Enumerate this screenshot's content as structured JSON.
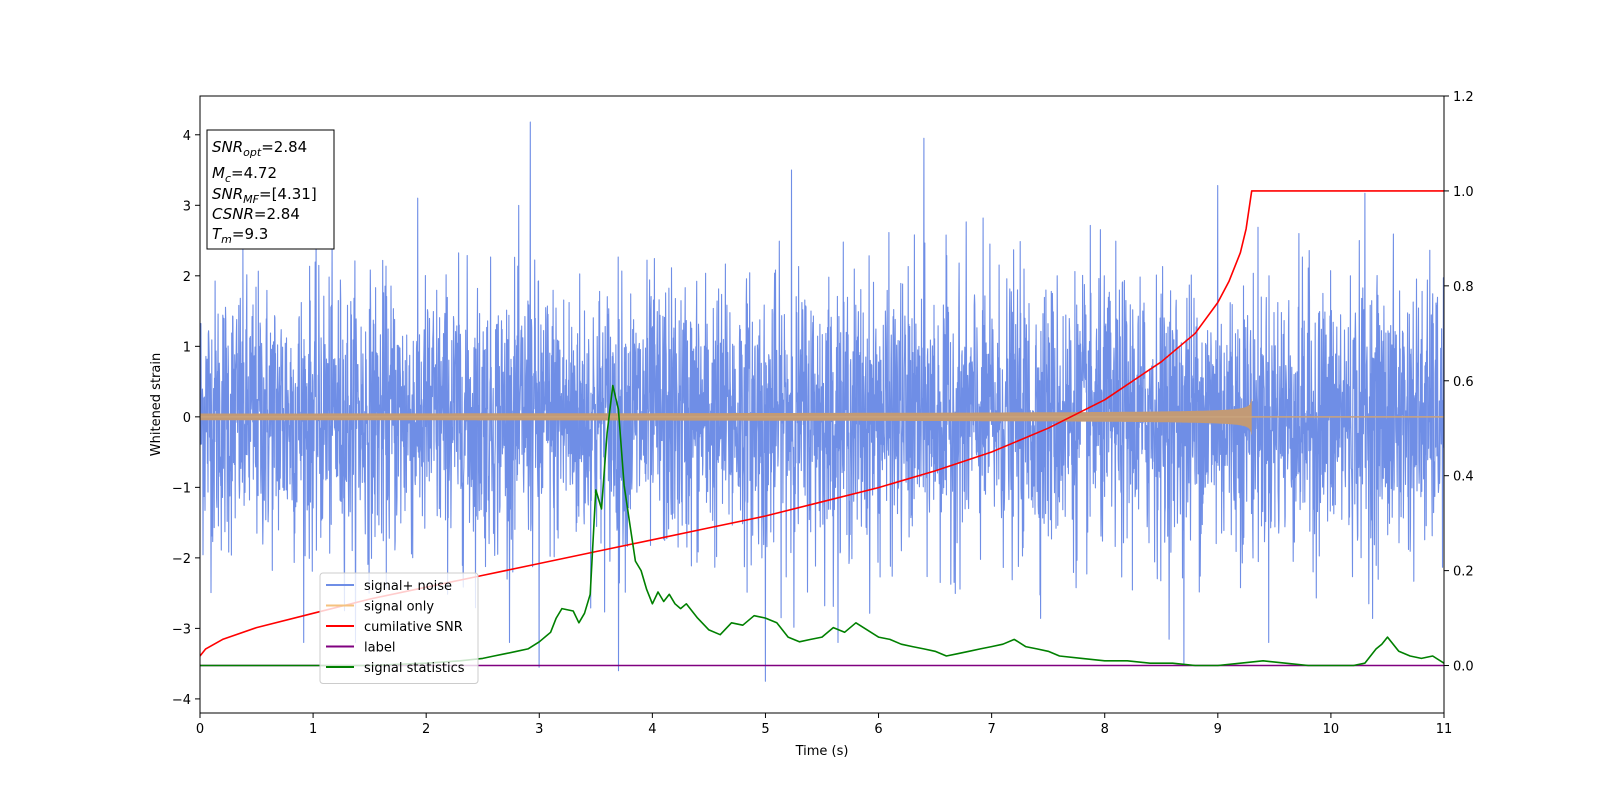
{
  "chart_data": {
    "type": "line",
    "xlabel": "Time (s)",
    "ylabel": "Whitened strain",
    "xlim": [
      0,
      11
    ],
    "ylim": [
      -4.2,
      4.55
    ],
    "y2lim": [
      -0.1,
      1.2
    ],
    "x_ticks": [
      0,
      1,
      2,
      3,
      4,
      5,
      6,
      7,
      8,
      9,
      10,
      11
    ],
    "y_ticks": [
      -4,
      -3,
      -2,
      -1,
      0,
      1,
      2,
      3,
      4
    ],
    "y_tick_labels": [
      "−4",
      "−3",
      "−2",
      "−1",
      "0",
      "1",
      "2",
      "3",
      "4"
    ],
    "y2_ticks": [
      0.0,
      0.2,
      0.4,
      0.6,
      0.8,
      1.0,
      1.2
    ],
    "y2_tick_labels": [
      "0.0",
      "0.2",
      "0.4",
      "0.6",
      "0.8",
      "1.0",
      "1.2"
    ],
    "grid": false,
    "legend_position": "lower-left",
    "series": [
      {
        "name": "signal+ noise",
        "color": "#6f8ee6",
        "axis": "left",
        "kind": "noise",
        "sigma": 0.95,
        "t_range": [
          0,
          11
        ],
        "peaks": [
          [
            2.92,
            4.18
          ],
          [
            6.4,
            3.95
          ],
          [
            5.23,
            3.5
          ],
          [
            3.0,
            -3.55
          ],
          [
            3.7,
            -3.6
          ],
          [
            5.0,
            -3.75
          ],
          [
            8.7,
            -3.5
          ],
          [
            9.0,
            3.28
          ],
          [
            10.3,
            3.17
          ]
        ]
      },
      {
        "name": "signal only",
        "color": "#f5c27e",
        "axis": "left",
        "kind": "chirp",
        "t_range": [
          0,
          9.3
        ],
        "end_amplitude": 0.27
      },
      {
        "name": "cumilative SNR",
        "color": "#ff0000",
        "axis": "right",
        "x": [
          0,
          0.05,
          0.2,
          0.5,
          1,
          1.5,
          2,
          2.5,
          3,
          3.5,
          4,
          4.5,
          5,
          5.5,
          6,
          6.5,
          7,
          7.5,
          8,
          8.5,
          8.8,
          9,
          9.1,
          9.2,
          9.25,
          9.3,
          11
        ],
        "y": [
          0.02,
          0.035,
          0.055,
          0.08,
          0.11,
          0.14,
          0.165,
          0.19,
          0.215,
          0.24,
          0.265,
          0.29,
          0.315,
          0.345,
          0.375,
          0.41,
          0.45,
          0.5,
          0.56,
          0.64,
          0.7,
          0.765,
          0.81,
          0.87,
          0.92,
          1.0,
          1.0
        ]
      },
      {
        "name": "label",
        "color": "#800080",
        "axis": "right",
        "x": [
          0,
          11
        ],
        "y": [
          0.0,
          0.0
        ]
      },
      {
        "name": "signal statistics",
        "color": "#008000",
        "axis": "right",
        "x": [
          0,
          0.5,
          1,
          1.5,
          2,
          2.3,
          2.5,
          2.6,
          2.7,
          2.8,
          2.9,
          3.0,
          3.1,
          3.15,
          3.2,
          3.3,
          3.35,
          3.4,
          3.45,
          3.5,
          3.55,
          3.6,
          3.65,
          3.7,
          3.75,
          3.8,
          3.85,
          3.9,
          3.95,
          4.0,
          4.05,
          4.1,
          4.15,
          4.2,
          4.25,
          4.3,
          4.4,
          4.5,
          4.6,
          4.7,
          4.8,
          4.9,
          5.0,
          5.1,
          5.2,
          5.3,
          5.4,
          5.5,
          5.6,
          5.7,
          5.8,
          5.9,
          6.0,
          6.1,
          6.2,
          6.3,
          6.4,
          6.5,
          6.6,
          6.7,
          6.8,
          6.9,
          7.0,
          7.1,
          7.2,
          7.3,
          7.4,
          7.5,
          7.6,
          7.8,
          8.0,
          8.2,
          8.4,
          8.6,
          8.8,
          9.0,
          9.2,
          9.4,
          9.6,
          9.8,
          10.0,
          10.2,
          10.3,
          10.4,
          10.45,
          10.5,
          10.6,
          10.7,
          10.8,
          10.9,
          11.0
        ],
        "y": [
          0.0,
          0.0,
          0.0,
          0.0,
          0.005,
          0.01,
          0.015,
          0.02,
          0.025,
          0.03,
          0.035,
          0.05,
          0.07,
          0.1,
          0.12,
          0.115,
          0.09,
          0.11,
          0.15,
          0.37,
          0.33,
          0.49,
          0.59,
          0.54,
          0.38,
          0.3,
          0.22,
          0.2,
          0.16,
          0.13,
          0.155,
          0.135,
          0.15,
          0.13,
          0.12,
          0.13,
          0.1,
          0.075,
          0.065,
          0.09,
          0.085,
          0.105,
          0.1,
          0.09,
          0.06,
          0.05,
          0.055,
          0.06,
          0.08,
          0.07,
          0.09,
          0.075,
          0.06,
          0.055,
          0.045,
          0.04,
          0.035,
          0.03,
          0.02,
          0.025,
          0.03,
          0.035,
          0.04,
          0.045,
          0.055,
          0.04,
          0.035,
          0.03,
          0.02,
          0.015,
          0.01,
          0.01,
          0.005,
          0.005,
          0.0,
          0.0,
          0.005,
          0.01,
          0.005,
          0.0,
          0.0,
          0.0,
          0.005,
          0.035,
          0.045,
          0.06,
          0.03,
          0.02,
          0.015,
          0.02,
          0.005
        ]
      }
    ]
  },
  "info_box": {
    "lines": [
      {
        "base": "SNR",
        "sub": "opt",
        "rest": "=2.84"
      },
      {
        "base": "M",
        "sub": "c",
        "rest": "=4.72"
      },
      {
        "base": "SNR",
        "sub": "MF",
        "rest": "=[4.31]"
      },
      {
        "base": "CSNR",
        "sub": "",
        "rest": "=2.84"
      },
      {
        "base": "T",
        "sub": "m",
        "rest": "=9.3"
      }
    ]
  }
}
